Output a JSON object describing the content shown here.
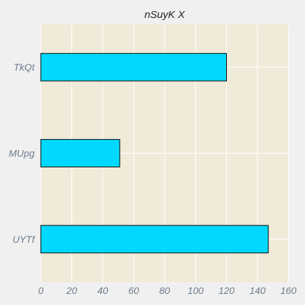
{
  "chart_data": {
    "type": "bar",
    "orientation": "horizontal",
    "title": "nSuyK  X",
    "xlabel": "",
    "ylabel": "",
    "categories": [
      "TkQt",
      "MUpg",
      "UYTf"
    ],
    "values": [
      120,
      51,
      147
    ],
    "xlim": [
      0,
      160
    ],
    "xticks": [
      0,
      20,
      40,
      60,
      80,
      100,
      120,
      140,
      160
    ],
    "grid": true,
    "legend": "none"
  },
  "colors": {
    "page_background": "#f0f0f0",
    "plot_background": "#f0ead8",
    "bar_fill": "#00d8ff",
    "bar_edge": "#000000",
    "grid": "#ffffff",
    "tick_label": "#6b7b8c",
    "title": "#222222"
  }
}
